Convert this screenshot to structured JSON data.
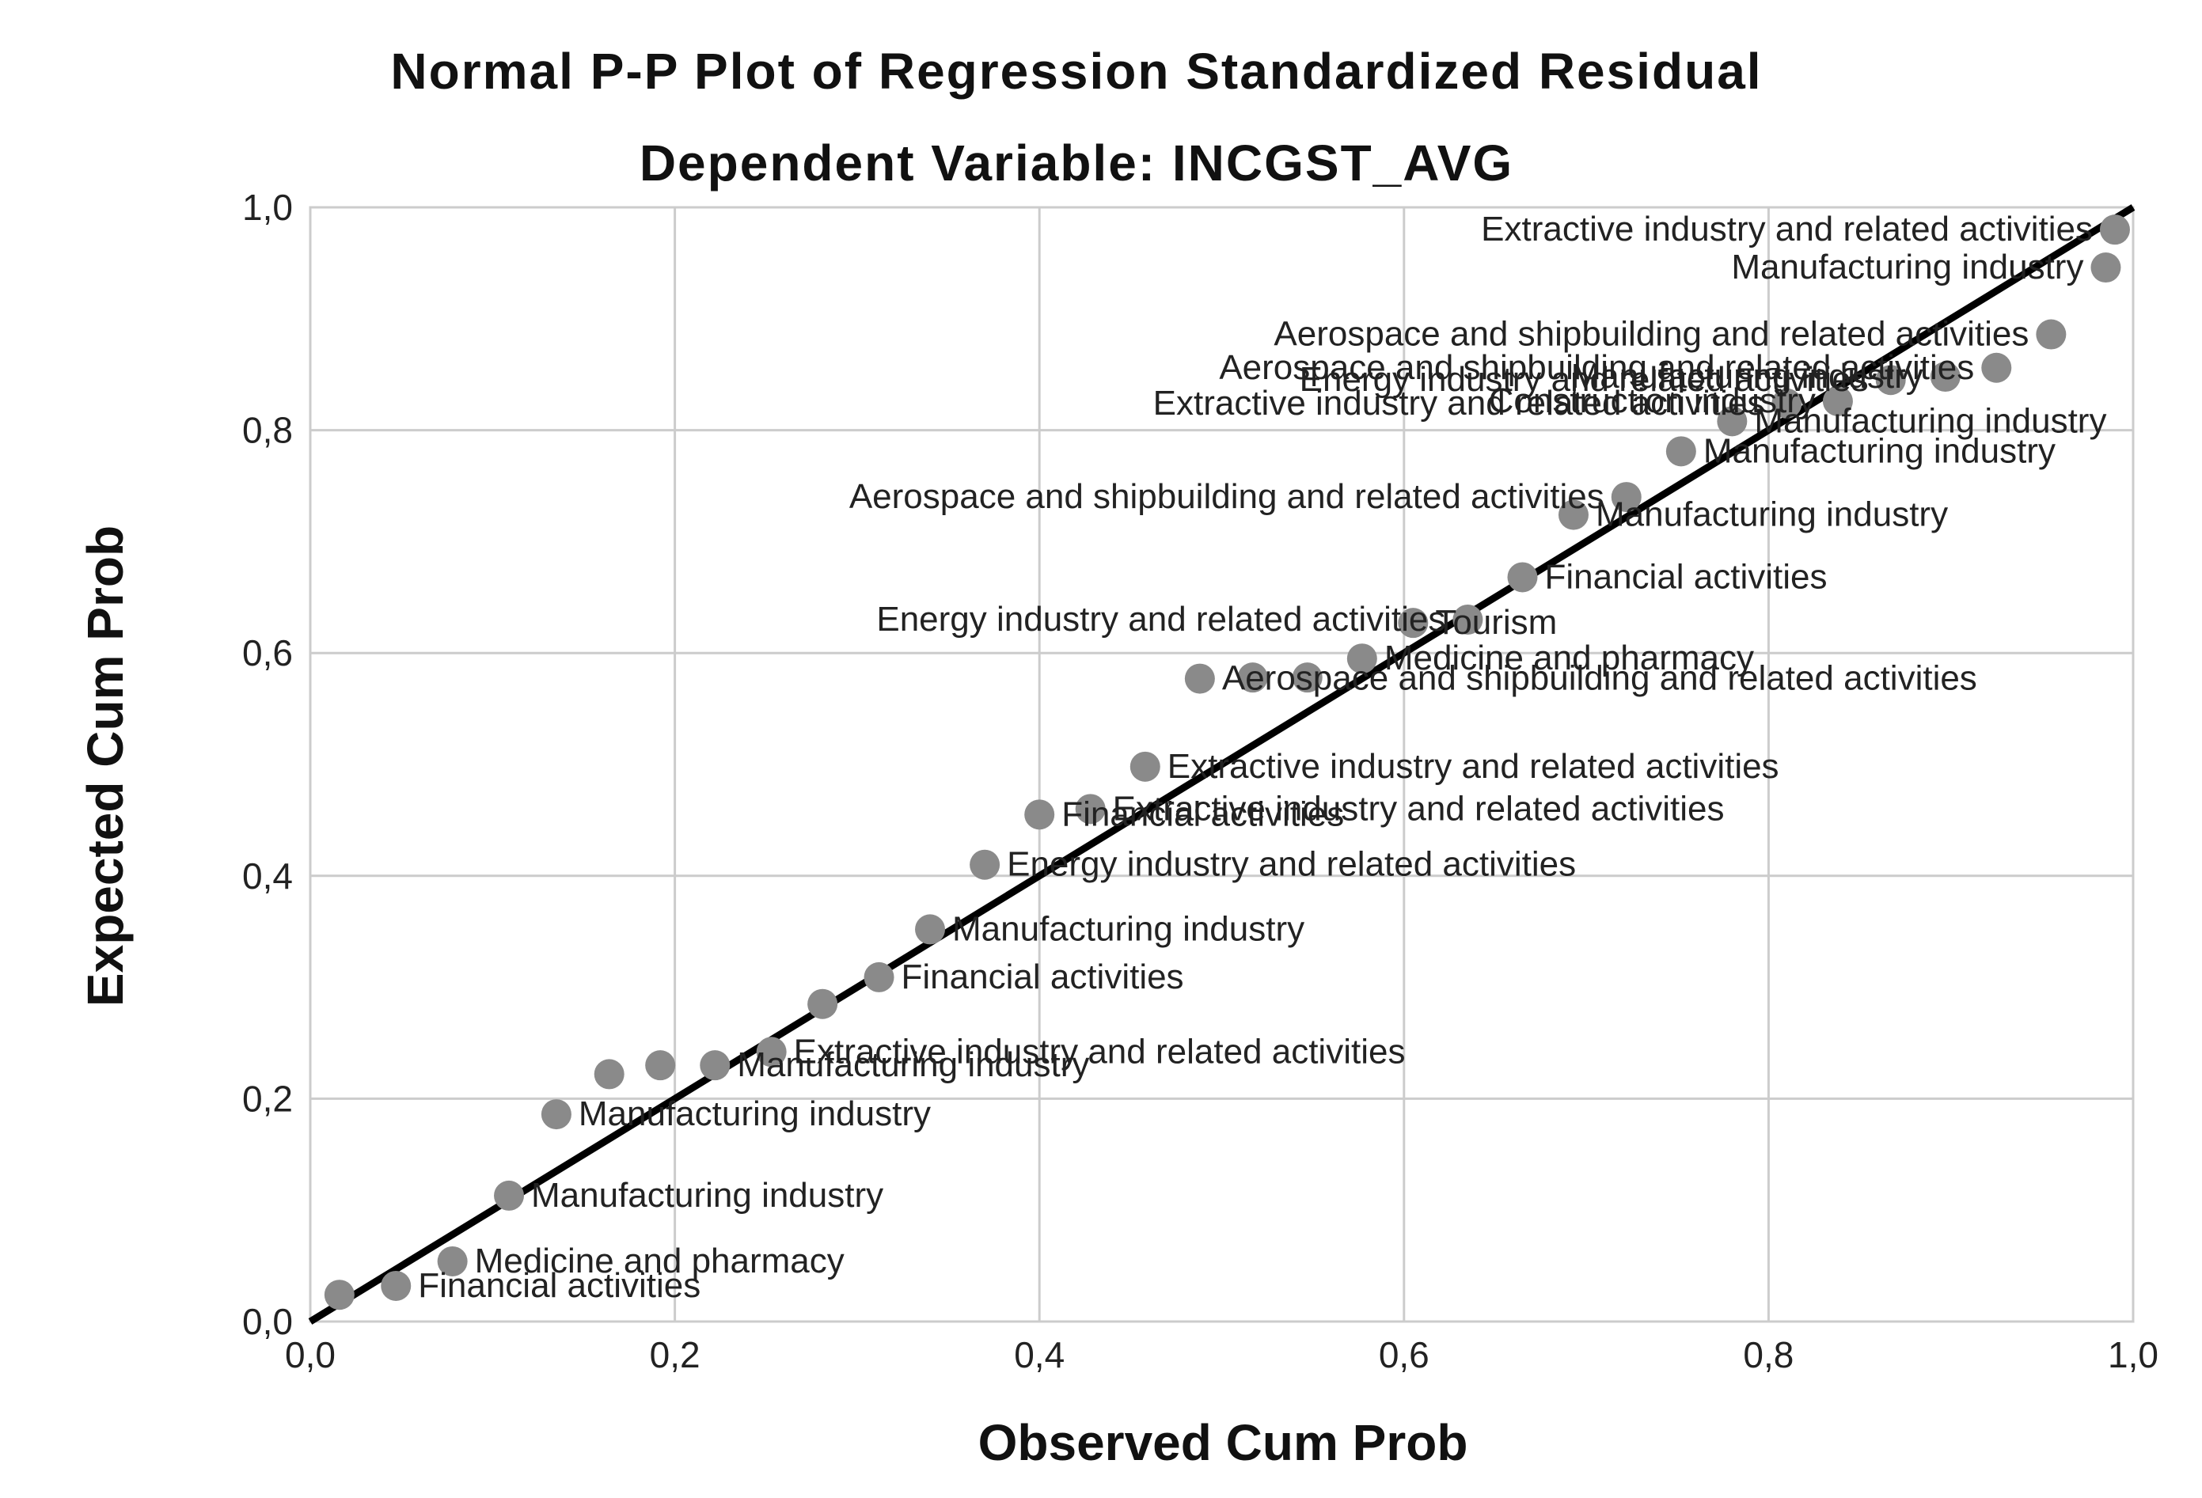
{
  "chart_data": {
    "type": "scatter",
    "title": "Normal P-P Plot of Regression Standardized Residual",
    "subtitle": "Dependent Variable: INCGST_AVG",
    "xlabel": "Observed Cum Prob",
    "ylabel": "Expected Cum Prob",
    "xlim": [
      0,
      1
    ],
    "ylim": [
      0,
      1
    ],
    "x_ticks": [
      "0,0",
      "0,2",
      "0,4",
      "0,6",
      "0,8",
      "1,0"
    ],
    "y_ticks": [
      "0,0",
      "0,2",
      "0,4",
      "0,6",
      "0,8",
      "1,0"
    ],
    "grid": true,
    "reference_line": {
      "from": [
        0,
        0
      ],
      "to": [
        1,
        1
      ]
    },
    "colors": {
      "points": "#8a8a8a",
      "line": "#000000",
      "grid": "#cccccc"
    },
    "points": [
      {
        "x": 0.016,
        "y": 0.024,
        "label": ""
      },
      {
        "x": 0.047,
        "y": 0.032,
        "label": "Financial activities"
      },
      {
        "x": 0.078,
        "y": 0.054,
        "label": "Medicine and pharmacy"
      },
      {
        "x": 0.109,
        "y": 0.113,
        "label": "Manufacturing industry"
      },
      {
        "x": 0.135,
        "y": 0.186,
        "label": "Manufacturing industry"
      },
      {
        "x": 0.164,
        "y": 0.222,
        "label": ""
      },
      {
        "x": 0.192,
        "y": 0.23,
        "label": ""
      },
      {
        "x": 0.222,
        "y": 0.23,
        "label": "Manufacturing industry"
      },
      {
        "x": 0.253,
        "y": 0.242,
        "label": "Extractive industry and related activities"
      },
      {
        "x": 0.281,
        "y": 0.285,
        "label": ""
      },
      {
        "x": 0.312,
        "y": 0.309,
        "label": "Financial activities"
      },
      {
        "x": 0.34,
        "y": 0.352,
        "label": "Manufacturing industry"
      },
      {
        "x": 0.37,
        "y": 0.41,
        "label": "Energy industry and related activities"
      },
      {
        "x": 0.4,
        "y": 0.455,
        "label": "Financial activities"
      },
      {
        "x": 0.428,
        "y": 0.46,
        "label": "Extractive industry and related activities"
      },
      {
        "x": 0.458,
        "y": 0.498,
        "label": "Extractive industry and related activities"
      },
      {
        "x": 0.488,
        "y": 0.577,
        "label": "Aerospace and shipbuilding and related activities"
      },
      {
        "x": 0.517,
        "y": 0.578,
        "label": ""
      },
      {
        "x": 0.547,
        "y": 0.578,
        "label": ""
      },
      {
        "x": 0.577,
        "y": 0.595,
        "label": "Medicine and pharmacy"
      },
      {
        "x": 0.605,
        "y": 0.627,
        "label": "Tourism"
      },
      {
        "x": 0.635,
        "y": 0.63,
        "label": "Energy industry and related activities"
      },
      {
        "x": 0.665,
        "y": 0.668,
        "label": "Financial activities"
      },
      {
        "x": 0.693,
        "y": 0.724,
        "label": "Manufacturing industry"
      },
      {
        "x": 0.722,
        "y": 0.74,
        "label": "Aerospace and shipbuilding and related activities"
      },
      {
        "x": 0.752,
        "y": 0.781,
        "label": "Manufacturing industry"
      },
      {
        "x": 0.78,
        "y": 0.808,
        "label": "Manufacturing industry"
      },
      {
        "x": 0.81,
        "y": 0.824,
        "label": "Extractive industry and related activities"
      },
      {
        "x": 0.838,
        "y": 0.826,
        "label": "Construction industry"
      },
      {
        "x": 0.867,
        "y": 0.845,
        "label": "Energy industry and related activities"
      },
      {
        "x": 0.897,
        "y": 0.848,
        "label": "Manufacturing industry"
      },
      {
        "x": 0.925,
        "y": 0.856,
        "label": "Aerospace and shipbuilding and related activities"
      },
      {
        "x": 0.955,
        "y": 0.886,
        "label": "Aerospace and shipbuilding and related activities"
      },
      {
        "x": 0.985,
        "y": 0.946,
        "label": "Manufacturing industry"
      },
      {
        "x": 0.99,
        "y": 0.98,
        "label": "Extractive industry and related activities"
      }
    ]
  }
}
